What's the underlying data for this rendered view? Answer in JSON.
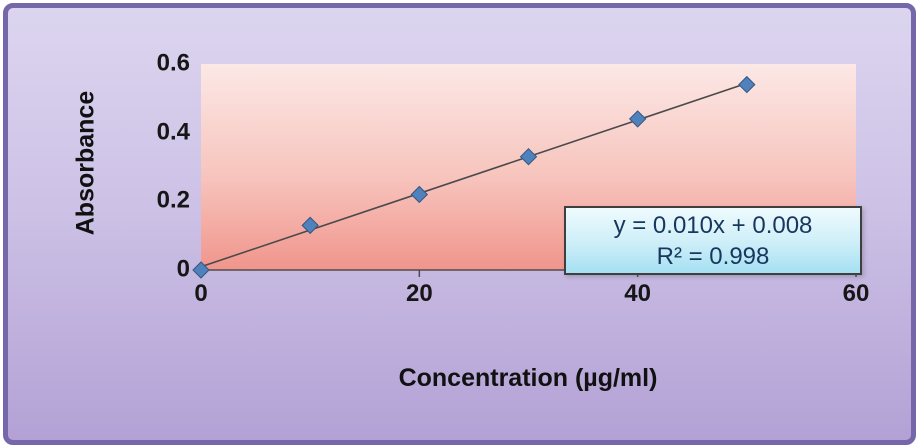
{
  "chart_data": {
    "type": "scatter",
    "title": "",
    "x": [
      0,
      10,
      20,
      30,
      40,
      50
    ],
    "y": [
      0.0,
      0.13,
      0.22,
      0.33,
      0.44,
      0.54
    ],
    "xlabel": "Concentration (µg/ml)",
    "ylabel": "Absorbance",
    "xlim": [
      0,
      60
    ],
    "ylim": [
      0,
      0.6
    ],
    "x_ticks": [
      0,
      20,
      40,
      60
    ],
    "y_ticks": [
      0,
      0.2,
      0.4,
      0.6
    ],
    "grid": false,
    "trendline_label": "y = 0.010x + 0.008",
    "r_squared_label": "R² = 0.998",
    "marker_color": "#4f81bd",
    "marker_edge": "#35567e",
    "trend_color": "#4a4a4a",
    "axis_color": "#4d4d4d"
  },
  "colors": {
    "frame_border": "#7567a9",
    "frame_bg_top": "#dcd5ef",
    "frame_bg_bottom": "#b3a1d5",
    "plot_bg_top": "#fce8e6",
    "plot_bg_bottom": "#f0958c",
    "equation_bg_top": "#eefbfe",
    "equation_bg_bottom": "#a5e0f2",
    "equation_border": "#3f3f3f",
    "equation_text": "#17375e"
  }
}
